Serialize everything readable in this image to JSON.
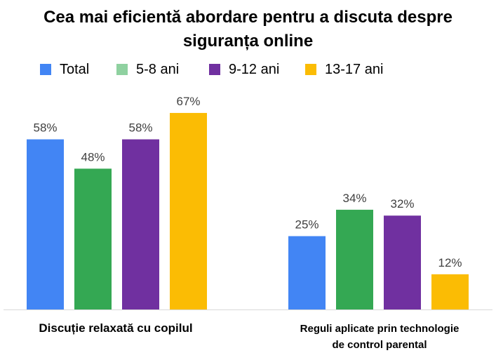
{
  "chart_data": {
    "type": "bar",
    "title": [
      "Cea mai eficientă abordare pentru a discuta despre",
      "siguranța online"
    ],
    "categories": [
      "Discuție relaxată cu copilul",
      "Reguli aplicate prin technologie de control parental"
    ],
    "category_label_lines": [
      [
        "Discuție relaxată cu copilul"
      ],
      [
        "Reguli aplicate prin technologie",
        "de control parental"
      ]
    ],
    "series": [
      {
        "name": "Total",
        "color": "#4285F4",
        "values": [
          58,
          25
        ],
        "labels": [
          "58%",
          "25%"
        ]
      },
      {
        "name": "5-8 ani",
        "color": "#34A853",
        "legend_color": "#8FD1A0",
        "values": [
          48,
          34
        ],
        "labels": [
          "48%",
          "34%"
        ]
      },
      {
        "name": "9-12 ani",
        "color": "#7030A0",
        "values": [
          58,
          32
        ],
        "labels": [
          "58%",
          "32%"
        ]
      },
      {
        "name": "13-17 ani",
        "color": "#FBBC04",
        "values": [
          67,
          12
        ],
        "labels": [
          "67%",
          "12%"
        ]
      }
    ],
    "ylim": [
      0,
      70
    ],
    "legend_position": "top",
    "grid": false,
    "xlabel": "",
    "ylabel": ""
  }
}
